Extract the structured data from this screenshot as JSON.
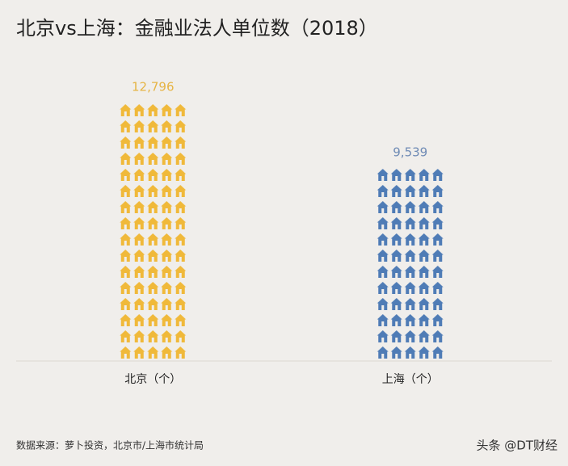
{
  "chart_data": {
    "type": "pictograph",
    "title": "北京vs上海：金融业法人单位数（2018）",
    "categories": [
      "北京（个）",
      "上海（个）"
    ],
    "values": [
      12796,
      9539
    ],
    "value_labels": [
      "12,796",
      "9,539"
    ],
    "colors": [
      "#f0b93a",
      "#4f7cb6"
    ],
    "label_colors": [
      "#e6b444",
      "#6f8bb5"
    ],
    "source": "数据来源：萝卜投资，北京市/上海市统计局",
    "watermark": "头条 @DT财经"
  }
}
